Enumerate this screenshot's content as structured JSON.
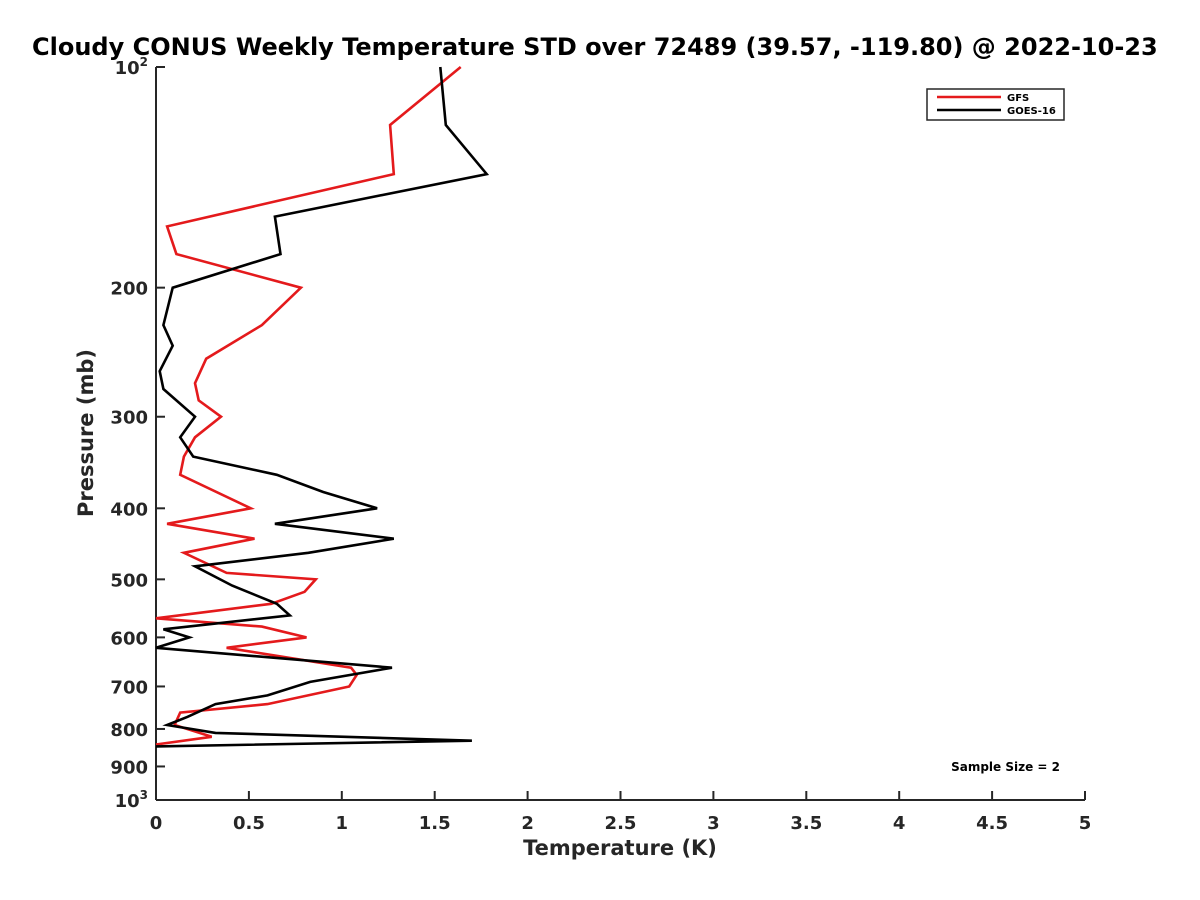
{
  "chart_data": {
    "type": "line",
    "title": "Cloudy CONUS Weekly Temperature STD over 72489 (39.57, -119.80) @ 2022-10-23",
    "xlabel": "Temperature (K)",
    "ylabel": "Pressure (mb)",
    "xlim": [
      0,
      5
    ],
    "ylim": [
      100,
      1000
    ],
    "y_scale": "log",
    "y_reversed": true,
    "grid": false,
    "legend_position": "top-right",
    "x_ticks": [
      "0",
      "0.5",
      "1",
      "1.5",
      "2",
      "2.5",
      "3",
      "3.5",
      "4",
      "4.5",
      "5"
    ],
    "x_tick_values": [
      0,
      0.5,
      1,
      1.5,
      2,
      2.5,
      3,
      3.5,
      4,
      4.5,
      5
    ],
    "y_ticks": [
      {
        "base": "10",
        "sup": "2",
        "value": 100
      },
      {
        "label": "200",
        "value": 200
      },
      {
        "label": "300",
        "value": 300
      },
      {
        "label": "400",
        "value": 400
      },
      {
        "label": "500",
        "value": 500
      },
      {
        "label": "600",
        "value": 600
      },
      {
        "label": "700",
        "value": 700
      },
      {
        "label": "800",
        "value": 800
      },
      {
        "label": "900",
        "value": 900
      },
      {
        "base": "10",
        "sup": "3",
        "value": 1000
      }
    ],
    "series": [
      {
        "name": "GFS",
        "color": "#e41a1c",
        "points": [
          [
            1.64,
            100
          ],
          [
            1.26,
            120
          ],
          [
            1.28,
            140
          ],
          [
            0.06,
            165
          ],
          [
            0.11,
            180
          ],
          [
            0.78,
            200
          ],
          [
            0.57,
            225
          ],
          [
            0.27,
            250
          ],
          [
            0.21,
            270
          ],
          [
            0.23,
            285
          ],
          [
            0.35,
            300
          ],
          [
            0.21,
            320
          ],
          [
            0.15,
            340
          ],
          [
            0.13,
            360
          ],
          [
            0.51,
            400
          ],
          [
            0.06,
            420
          ],
          [
            0.53,
            440
          ],
          [
            0.15,
            460
          ],
          [
            0.38,
            490
          ],
          [
            0.86,
            500
          ],
          [
            0.8,
            520
          ],
          [
            0.62,
            540
          ],
          [
            0.0,
            565
          ],
          [
            0.57,
            580
          ],
          [
            0.81,
            600
          ],
          [
            0.38,
            620
          ],
          [
            1.05,
            660
          ],
          [
            1.08,
            675
          ],
          [
            1.04,
            700
          ],
          [
            0.6,
            740
          ],
          [
            0.13,
            760
          ],
          [
            0.1,
            790
          ],
          [
            0.3,
            820
          ],
          [
            0.0,
            840
          ]
        ]
      },
      {
        "name": "GOES-16",
        "color": "#000000",
        "points": [
          [
            1.53,
            100
          ],
          [
            1.56,
            120
          ],
          [
            1.78,
            140
          ],
          [
            0.64,
            160
          ],
          [
            0.67,
            180
          ],
          [
            0.09,
            200
          ],
          [
            0.04,
            225
          ],
          [
            0.09,
            240
          ],
          [
            0.02,
            260
          ],
          [
            0.04,
            275
          ],
          [
            0.21,
            300
          ],
          [
            0.13,
            320
          ],
          [
            0.2,
            340
          ],
          [
            0.65,
            360
          ],
          [
            0.9,
            380
          ],
          [
            1.19,
            400
          ],
          [
            0.64,
            420
          ],
          [
            1.28,
            440
          ],
          [
            0.82,
            460
          ],
          [
            0.21,
            480
          ],
          [
            0.41,
            510
          ],
          [
            0.65,
            540
          ],
          [
            0.72,
            560
          ],
          [
            0.04,
            585
          ],
          [
            0.18,
            600
          ],
          [
            0.0,
            620
          ],
          [
            1.27,
            660
          ],
          [
            0.83,
            690
          ],
          [
            0.6,
            720
          ],
          [
            0.32,
            740
          ],
          [
            0.17,
            770
          ],
          [
            0.06,
            790
          ],
          [
            0.32,
            810
          ],
          [
            1.7,
            830
          ],
          [
            0.0,
            845
          ]
        ]
      }
    ],
    "annotation": "Sample Size = 2"
  }
}
